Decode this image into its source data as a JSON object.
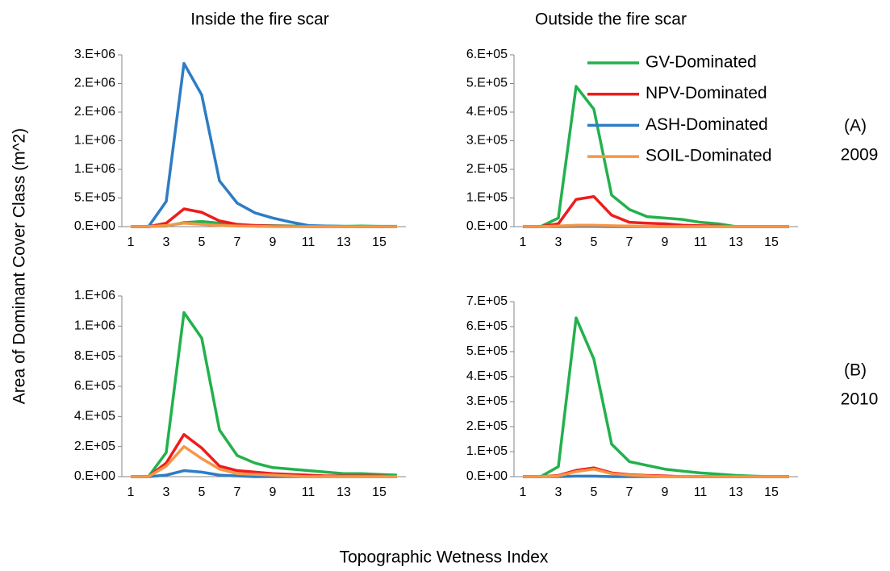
{
  "column_titles": [
    "Inside the fire scar",
    "Outside the fire scar"
  ],
  "row_labels": [
    [
      "(A)",
      "2009"
    ],
    [
      "(B)",
      "2010"
    ]
  ],
  "y_label": "Area of Dominant Cover Class (m^2)",
  "x_label": "Topographic Wetness Index",
  "chart_data": [
    {
      "type": "line",
      "categories": [
        1,
        null,
        3,
        null,
        5,
        null,
        7,
        null,
        9,
        null,
        11,
        null,
        13,
        null,
        15,
        null
      ],
      "ylim": [
        0,
        3000000
      ],
      "yticks": [
        {
          "value": 0,
          "label": "0.E+00"
        },
        {
          "value": 500000,
          "label": "5.E+05"
        },
        {
          "value": 1000000,
          "label": "1.E+06"
        },
        {
          "value": 1500000,
          "label": "1.E+06"
        },
        {
          "value": 2000000,
          "label": "2.E+06"
        },
        {
          "value": 2500000,
          "label": "2.E+06"
        },
        {
          "value": 3000000,
          "label": "3.E+06"
        }
      ],
      "series": [
        {
          "name": "GV-Dominated",
          "color": "#22b14c",
          "values": [
            0,
            0,
            10000,
            70000,
            90000,
            60000,
            30000,
            20000,
            15000,
            10000,
            10000,
            10000,
            5000,
            10000,
            5000,
            5000
          ]
        },
        {
          "name": "NPV-Dominated",
          "color": "#ee1c1c",
          "values": [
            0,
            0,
            60000,
            310000,
            250000,
            100000,
            40000,
            20000,
            10000,
            5000,
            0,
            0,
            0,
            0,
            0,
            0
          ]
        },
        {
          "name": "ASH-Dominated",
          "color": "#2e7cc4",
          "values": [
            0,
            0,
            440000,
            2850000,
            2300000,
            800000,
            410000,
            240000,
            150000,
            80000,
            20000,
            10000,
            5000,
            0,
            0,
            0
          ]
        },
        {
          "name": "SOIL-Dominated",
          "color": "#f79646",
          "values": [
            0,
            0,
            20000,
            60000,
            40000,
            20000,
            10000,
            5000,
            0,
            0,
            0,
            0,
            0,
            0,
            0,
            0
          ]
        }
      ]
    },
    {
      "type": "line",
      "legend": "upper right",
      "categories": [
        1,
        null,
        3,
        null,
        5,
        null,
        7,
        null,
        9,
        null,
        11,
        null,
        13,
        null,
        15,
        null
      ],
      "ylim": [
        0,
        600000
      ],
      "yticks": [
        {
          "value": 0,
          "label": "0.E+00"
        },
        {
          "value": 100000,
          "label": "1.E+05"
        },
        {
          "value": 200000,
          "label": "2.E+05"
        },
        {
          "value": 300000,
          "label": "3.E+05"
        },
        {
          "value": 400000,
          "label": "4.E+05"
        },
        {
          "value": 500000,
          "label": "5.E+05"
        },
        {
          "value": 600000,
          "label": "6.E+05"
        }
      ],
      "series": [
        {
          "name": "GV-Dominated",
          "color": "#22b14c",
          "values": [
            0,
            0,
            30000,
            490000,
            410000,
            110000,
            60000,
            35000,
            30000,
            25000,
            15000,
            10000,
            0,
            0,
            0,
            0
          ]
        },
        {
          "name": "NPV-Dominated",
          "color": "#ee1c1c",
          "values": [
            0,
            0,
            10000,
            95000,
            105000,
            40000,
            15000,
            12000,
            10000,
            5000,
            3000,
            2000,
            0,
            0,
            0,
            0
          ]
        },
        {
          "name": "ASH-Dominated",
          "color": "#2e7cc4",
          "values": [
            0,
            0,
            0,
            1000,
            1000,
            0,
            0,
            0,
            0,
            0,
            0,
            0,
            0,
            0,
            0,
            0
          ]
        },
        {
          "name": "SOIL-Dominated",
          "color": "#f79646",
          "values": [
            0,
            0,
            2000,
            5000,
            5000,
            3000,
            2000,
            1000,
            0,
            0,
            0,
            0,
            0,
            0,
            0,
            0
          ]
        }
      ]
    },
    {
      "type": "line",
      "categories": [
        1,
        null,
        3,
        null,
        5,
        null,
        7,
        null,
        9,
        null,
        11,
        null,
        13,
        null,
        15,
        null
      ],
      "ylim": [
        0,
        1200000
      ],
      "yticks": [
        {
          "value": 0,
          "label": "0.E+00"
        },
        {
          "value": 200000,
          "label": "2.E+05"
        },
        {
          "value": 400000,
          "label": "4.E+05"
        },
        {
          "value": 600000,
          "label": "6.E+05"
        },
        {
          "value": 800000,
          "label": "8.E+05"
        },
        {
          "value": 1000000,
          "label": "1.E+06"
        },
        {
          "value": 1200000,
          "label": "1.E+06"
        }
      ],
      "series": [
        {
          "name": "GV-Dominated",
          "color": "#22b14c",
          "values": [
            0,
            0,
            160000,
            1090000,
            920000,
            310000,
            140000,
            90000,
            60000,
            50000,
            40000,
            30000,
            20000,
            20000,
            15000,
            10000
          ]
        },
        {
          "name": "NPV-Dominated",
          "color": "#ee1c1c",
          "values": [
            0,
            0,
            90000,
            280000,
            190000,
            70000,
            40000,
            30000,
            20000,
            15000,
            10000,
            5000,
            5000,
            5000,
            5000,
            0
          ]
        },
        {
          "name": "ASH-Dominated",
          "color": "#2e7cc4",
          "values": [
            0,
            0,
            10000,
            40000,
            30000,
            10000,
            5000,
            0,
            0,
            0,
            0,
            0,
            0,
            0,
            0,
            0
          ]
        },
        {
          "name": "SOIL-Dominated",
          "color": "#f79646",
          "values": [
            0,
            0,
            70000,
            200000,
            120000,
            50000,
            20000,
            15000,
            10000,
            5000,
            0,
            0,
            0,
            0,
            0,
            0
          ]
        }
      ]
    },
    {
      "type": "line",
      "categories": [
        1,
        null,
        3,
        null,
        5,
        null,
        7,
        null,
        9,
        null,
        11,
        null,
        13,
        null,
        15,
        null
      ],
      "ylim": [
        0,
        700000
      ],
      "yticks": [
        {
          "value": 0,
          "label": "0.E+00"
        },
        {
          "value": 100000,
          "label": "1.E+05"
        },
        {
          "value": 200000,
          "label": "2.E+05"
        },
        {
          "value": 300000,
          "label": "3.E+05"
        },
        {
          "value": 400000,
          "label": "4.E+05"
        },
        {
          "value": 500000,
          "label": "5.E+05"
        },
        {
          "value": 600000,
          "label": "6.E+05"
        },
        {
          "value": 700000,
          "label": "7.E+05"
        }
      ],
      "series": [
        {
          "name": "GV-Dominated",
          "color": "#22b14c",
          "values": [
            0,
            0,
            40000,
            635000,
            470000,
            130000,
            60000,
            45000,
            30000,
            22000,
            15000,
            10000,
            5000,
            2000,
            0,
            0
          ]
        },
        {
          "name": "NPV-Dominated",
          "color": "#ee1c1c",
          "values": [
            0,
            0,
            5000,
            25000,
            35000,
            15000,
            8000,
            5000,
            3000,
            0,
            0,
            0,
            0,
            0,
            0,
            0
          ]
        },
        {
          "name": "ASH-Dominated",
          "color": "#2e7cc4",
          "values": [
            0,
            0,
            0,
            2000,
            2000,
            0,
            0,
            0,
            0,
            0,
            0,
            0,
            0,
            0,
            0,
            0
          ]
        },
        {
          "name": "SOIL-Dominated",
          "color": "#f79646",
          "values": [
            0,
            0,
            3000,
            20000,
            30000,
            12000,
            6000,
            3000,
            0,
            0,
            0,
            0,
            0,
            0,
            0,
            0
          ]
        }
      ]
    }
  ]
}
